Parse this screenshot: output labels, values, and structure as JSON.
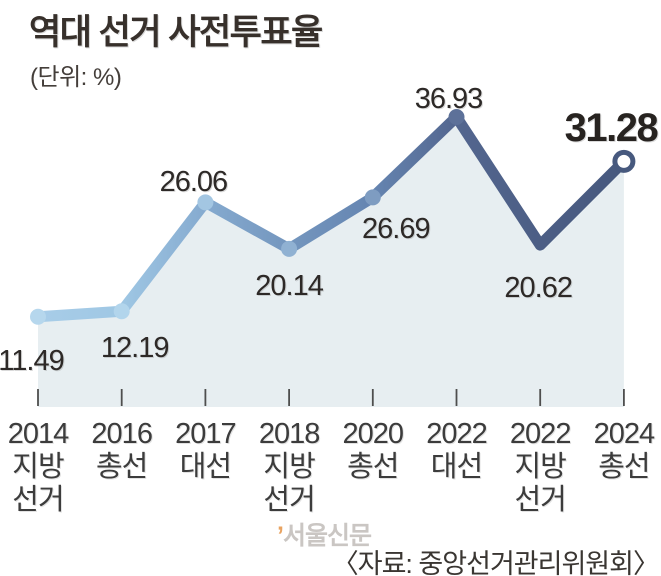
{
  "title": "역대 선거 사전투표율",
  "unit_label": "(단위: %)",
  "source": "〈자료: 중앙선거관리위원회〉",
  "watermark": {
    "mark": "’",
    "text": "서울신문"
  },
  "chart_data": {
    "type": "line",
    "title": "역대 선거 사전투표율",
    "unit": "%",
    "categories": [
      "2014 지방선거",
      "2016 총선",
      "2017 대선",
      "2018 지방선거",
      "2020 총선",
      "2022 대선",
      "2022 지방선거",
      "2024 총선"
    ],
    "category_lines": [
      [
        "2014",
        "지방",
        "선거"
      ],
      [
        "2016",
        "총선"
      ],
      [
        "2017",
        "대선"
      ],
      [
        "2018",
        "지방",
        "선거"
      ],
      [
        "2020",
        "총선"
      ],
      [
        "2022",
        "대선"
      ],
      [
        "2022",
        "지방",
        "선거"
      ],
      [
        "2024",
        "총선"
      ]
    ],
    "values": [
      11.49,
      12.19,
      26.06,
      20.14,
      26.69,
      36.93,
      20.62,
      31.28
    ],
    "value_labels": [
      "11.49",
      "12.19",
      "26.06",
      "20.14",
      "26.69",
      "36.93",
      "20.62",
      "31.28"
    ],
    "label_positions": [
      "below",
      "below",
      "above",
      "below",
      "below",
      "above",
      "below",
      "above"
    ],
    "highlight_index": 7,
    "ylim": [
      0,
      42
    ],
    "grid": false,
    "legend": false,
    "xlabel": "",
    "ylabel": "",
    "colors": {
      "area_fill": "#e7eef1",
      "line_gradient": [
        "#a8cde8",
        "#9fc7e4",
        "#85aacf",
        "#7496be",
        "#6585b1",
        "#53668f",
        "#4c5e85",
        "#47597e"
      ],
      "marker_fills": [
        "#b6d7ed",
        "#b2d5ec",
        "#a3c6e2",
        "#90b1d2",
        "#7e9cc1",
        "#5d7199",
        null,
        "#ffffff"
      ],
      "highlight_marker_stroke": "#47597e",
      "tick": "#4e4e4e"
    }
  }
}
